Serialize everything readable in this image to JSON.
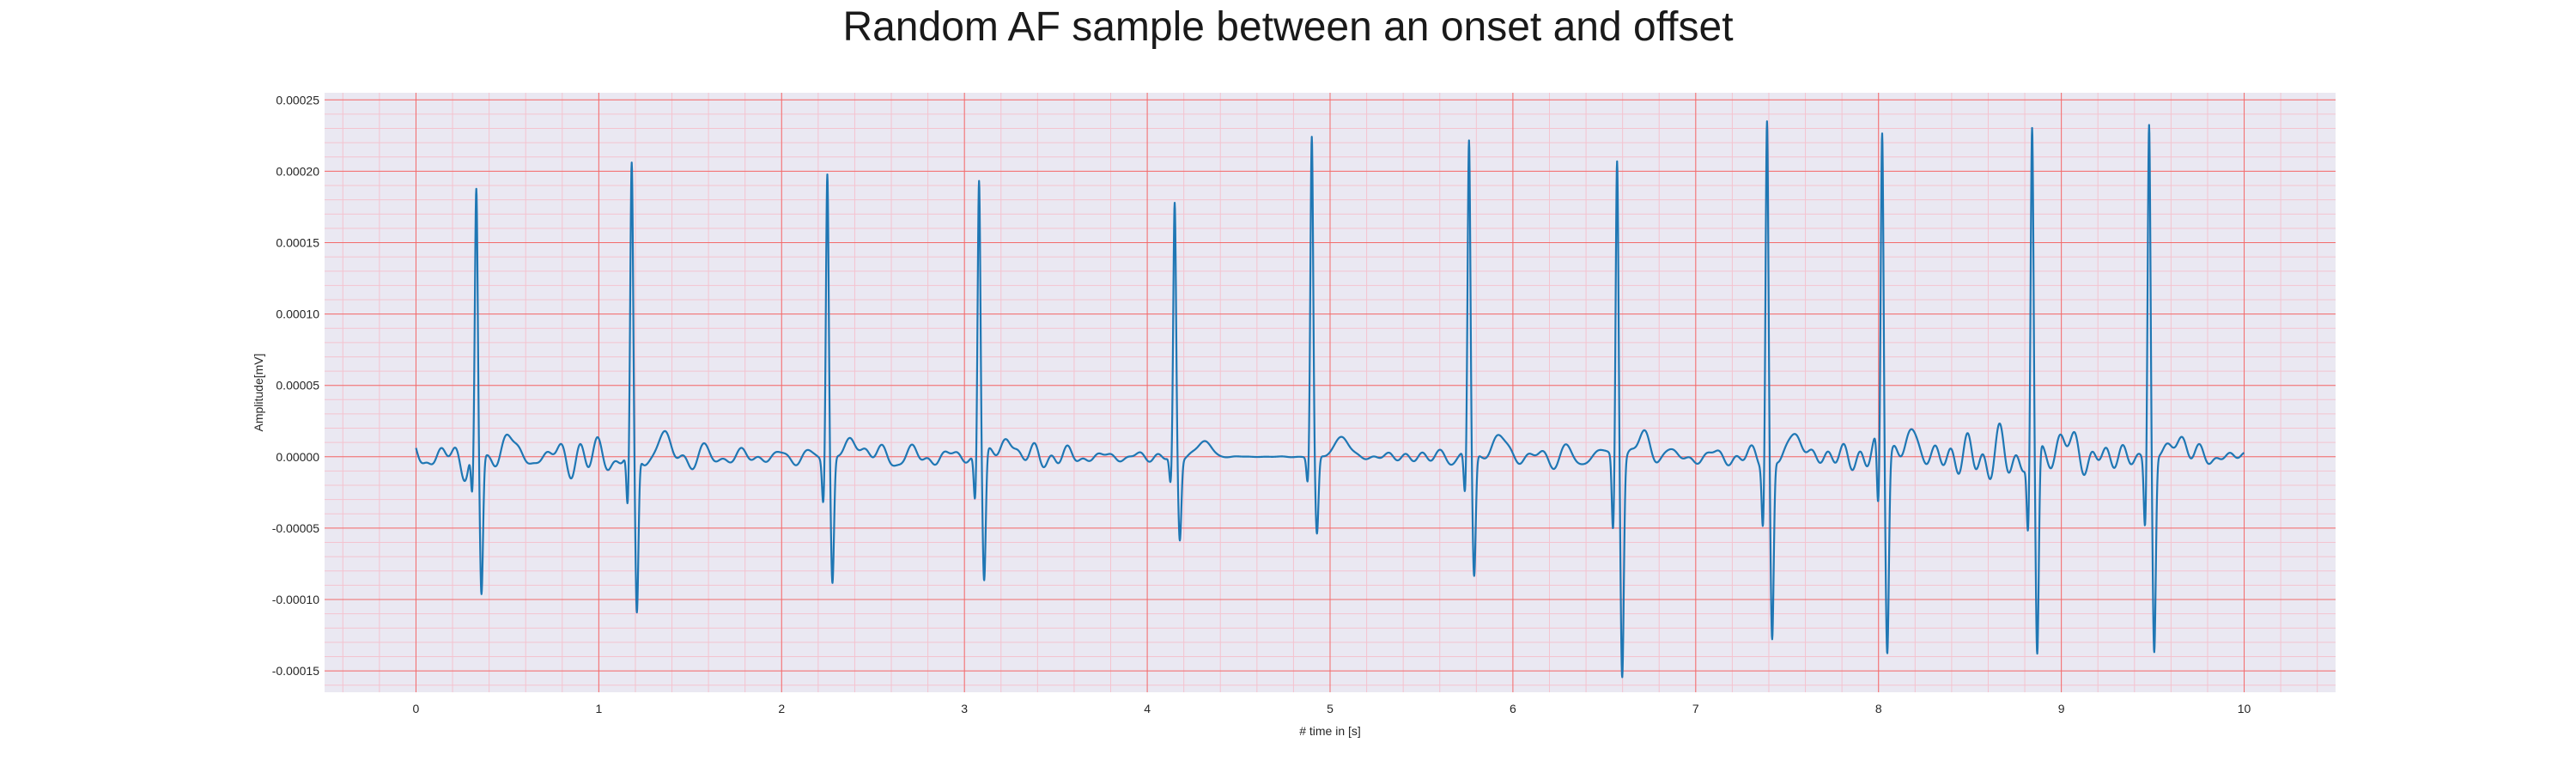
{
  "chart_data": {
    "type": "line",
    "title": "Random AF sample between an onset and offset",
    "xlabel": "# time in [s]",
    "ylabel": "Amplitude[mV]",
    "xlim": [
      -0.5,
      10.5
    ],
    "ylim": [
      -0.000165,
      0.000255
    ],
    "x_ticks": [
      0,
      1,
      2,
      3,
      4,
      5,
      6,
      7,
      8,
      9,
      10
    ],
    "y_ticks": [
      -0.00015,
      -0.0001,
      -5e-05,
      0.0,
      5e-05,
      0.0001,
      0.00015,
      0.0002,
      0.00025
    ],
    "y_tick_labels": [
      "-0.00015",
      "-0.00010",
      "-0.00005",
      "0.00000",
      "0.00005",
      "0.00010",
      "0.00015",
      "0.00020",
      "0.00025"
    ],
    "x_tick_labels": [
      "0",
      "1",
      "2",
      "3",
      "4",
      "5",
      "6",
      "7",
      "8",
      "9",
      "10"
    ],
    "grid": true,
    "minor_grid": true,
    "colors": {
      "plot_background": "#eae8f2",
      "major_grid": "#f26b6b",
      "minor_grid": "#f4c3cf",
      "line": "#1f77b4"
    },
    "series": [
      {
        "x_range": [
          0,
          10
        ],
        "qrs_complexes": [
          {
            "t": 0.33,
            "peak": 0.000175,
            "trough": -0.0001
          },
          {
            "t": 1.18,
            "peak": 0.000195,
            "trough": -0.000115
          },
          {
            "t": 2.25,
            "peak": 0.000202,
            "trough": -8.8e-05
          },
          {
            "t": 3.08,
            "peak": 0.000197,
            "trough": -8.8e-05
          },
          {
            "t": 4.15,
            "peak": 0.000176,
            "trough": -5.8e-05
          },
          {
            "t": 4.9,
            "peak": 0.000224,
            "trough": -5.5e-05
          },
          {
            "t": 5.76,
            "peak": 0.00022,
            "trough": -8.5e-05
          },
          {
            "t": 6.57,
            "peak": 0.000215,
            "trough": -0.000148
          },
          {
            "t": 7.39,
            "peak": 0.000234,
            "trough": -0.00013
          },
          {
            "t": 8.02,
            "peak": 0.000235,
            "trough": -0.000128
          },
          {
            "t": 8.84,
            "peak": 0.000224,
            "trough": -0.000148
          },
          {
            "t": 9.48,
            "peak": 0.000235,
            "trough": -0.000138
          }
        ],
        "baseline_fibrillation_amplitude": 3e-05
      }
    ]
  }
}
